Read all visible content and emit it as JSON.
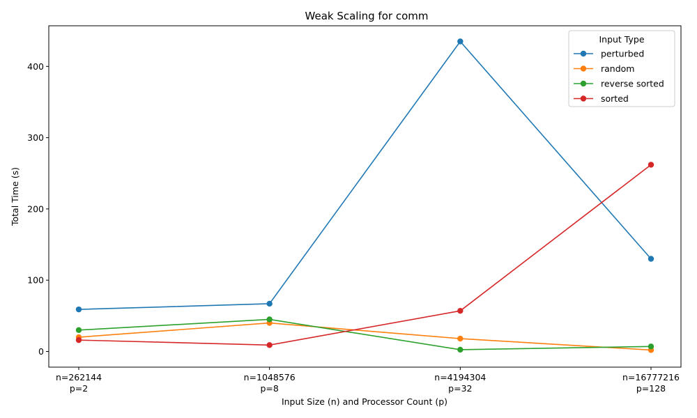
{
  "chart_data": {
    "type": "line",
    "title": "Weak Scaling for comm",
    "xlabel": "Input Size (n) and Processor Count (p)",
    "ylabel": "Total Time (s)",
    "categories": [
      [
        "n=262144",
        "p=2"
      ],
      [
        "n=1048576",
        "p=8"
      ],
      [
        "n=4194304",
        "p=32"
      ],
      [
        "n=16777216",
        "p=128"
      ]
    ],
    "yticks": [
      "0",
      "100",
      "200",
      "300",
      "400"
    ],
    "ylim": [
      -22,
      457
    ],
    "grid": false,
    "legend": {
      "title": "Input Type",
      "placement": "top-right"
    },
    "series": [
      {
        "name": "perturbed",
        "color": "#1f77b4",
        "values": [
          59,
          67,
          435,
          130
        ]
      },
      {
        "name": "random",
        "color": "#ff7f0e",
        "values": [
          20,
          40,
          18,
          2
        ]
      },
      {
        "name": "reverse sorted",
        "color": "#2ca02c",
        "values": [
          30,
          45,
          2.5,
          7
        ]
      },
      {
        "name": "sorted",
        "color": "#d62728",
        "values": [
          16,
          9,
          57,
          262
        ]
      }
    ]
  }
}
